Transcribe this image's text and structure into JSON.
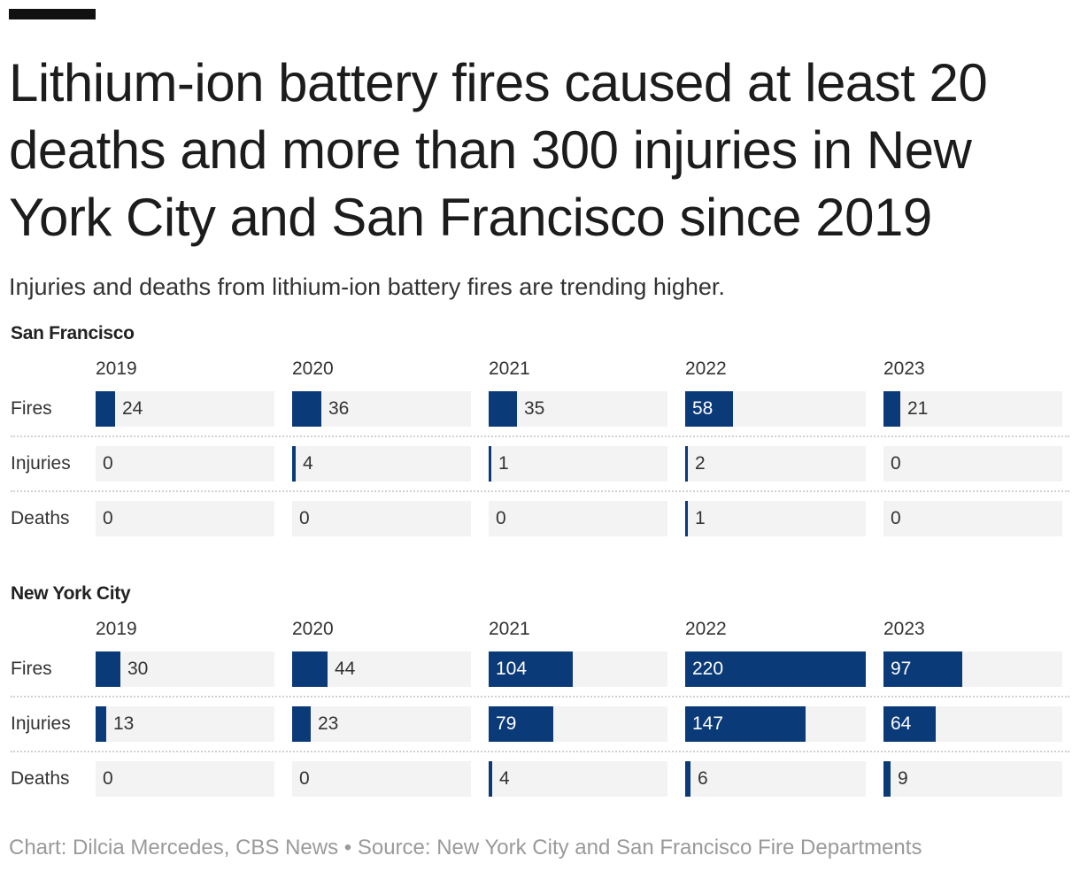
{
  "title": "Lithium-ion battery fires caused at least 20 deaths and more than 300 injuries in New York City and San Francisco since 2019",
  "subtitle": "Injuries and deaths from lithium-ion battery fires are trending higher.",
  "credit": "Chart: Dilcia Mercedes, CBS News • Source: New York City and San Francisco Fire Departments",
  "colors": {
    "bar": "#0b3a78",
    "cell_bg": "#f3f3f3",
    "text": "#222222",
    "credit": "#9a9a9a"
  },
  "chart_data": {
    "type": "table",
    "max_value": 220,
    "years": [
      "2019",
      "2020",
      "2021",
      "2022",
      "2023"
    ],
    "sections": [
      {
        "name": "San Francisco",
        "rows": [
          {
            "label": "Fires",
            "values": [
              24,
              36,
              35,
              58,
              21
            ]
          },
          {
            "label": "Injuries",
            "values": [
              0,
              4,
              1,
              2,
              0
            ]
          },
          {
            "label": "Deaths",
            "values": [
              0,
              0,
              0,
              1,
              0
            ]
          }
        ]
      },
      {
        "name": "New York City",
        "rows": [
          {
            "label": "Fires",
            "values": [
              30,
              44,
              104,
              220,
              97
            ]
          },
          {
            "label": "Injuries",
            "values": [
              13,
              23,
              79,
              147,
              64
            ]
          },
          {
            "label": "Deaths",
            "values": [
              0,
              0,
              4,
              6,
              9
            ]
          }
        ]
      }
    ]
  }
}
